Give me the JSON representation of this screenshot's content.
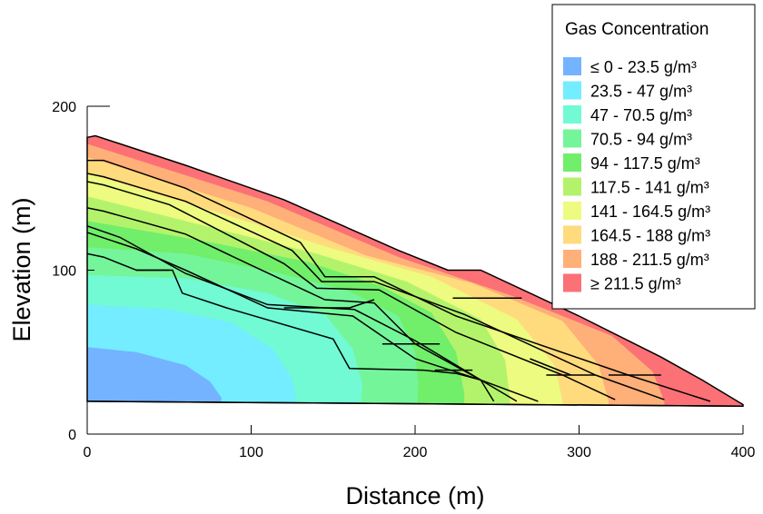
{
  "chart_data": {
    "type": "contour",
    "title": "",
    "xlabel": "Distance (m)",
    "ylabel": "Elevation (m)",
    "xlim": [
      0,
      400
    ],
    "ylim": [
      0,
      200
    ],
    "xticks": [
      0,
      100,
      200,
      300,
      400
    ],
    "yticks": [
      0,
      100,
      200
    ],
    "legend": {
      "title": "Gas Concentration",
      "placement": "top-right",
      "entries": [
        {
          "label": "≤ 0 - 23.5 g/m³",
          "color": "#74B3FF"
        },
        {
          "label": "23.5 - 47 g/m³",
          "color": "#73EDFF"
        },
        {
          "label": "47 - 70.5 g/m³",
          "color": "#71FAD4"
        },
        {
          "label": "70.5 - 94 g/m³",
          "color": "#74F59A"
        },
        {
          "label": "94 - 117.5 g/m³",
          "color": "#71EE6A"
        },
        {
          "label": "117.5 - 141 g/m³",
          "color": "#B3F36C"
        },
        {
          "label": "141 - 164.5 g/m³",
          "color": "#EDFB80"
        },
        {
          "label": "164.5 - 188 g/m³",
          "color": "#FFDB7E"
        },
        {
          "label": "188 - 211.5 g/m³",
          "color": "#FFAF78"
        },
        {
          "label": "≥ 211.5 g/m³",
          "color": "#FB7176"
        }
      ]
    },
    "domain_outline": [
      [
        0,
        181
      ],
      [
        5,
        182
      ],
      [
        60,
        164
      ],
      [
        120,
        143
      ],
      [
        190,
        112
      ],
      [
        220,
        100
      ],
      [
        240,
        100
      ],
      [
        300,
        72
      ],
      [
        350,
        47
      ],
      [
        375,
        33
      ],
      [
        400,
        18
      ],
      [
        400,
        17
      ],
      [
        0,
        20
      ]
    ],
    "foundation_line": [
      [
        0,
        20
      ],
      [
        400,
        17
      ]
    ],
    "contour_bands": [
      {
        "level": 0,
        "boundary": [
          [
            0,
            53
          ],
          [
            30,
            50
          ],
          [
            60,
            42
          ],
          [
            75,
            32
          ],
          [
            82,
            22
          ],
          [
            80,
            11
          ],
          [
            78,
            0
          ]
        ]
      },
      {
        "level": 1,
        "boundary": [
          [
            0,
            79
          ],
          [
            50,
            76
          ],
          [
            88,
            68
          ],
          [
            113,
            52
          ],
          [
            125,
            34
          ],
          [
            128,
            18
          ],
          [
            125,
            0
          ]
        ]
      },
      {
        "level": 2,
        "boundary": [
          [
            0,
            97
          ],
          [
            60,
            95
          ],
          [
            110,
            86
          ],
          [
            145,
            73
          ],
          [
            162,
            52
          ],
          [
            168,
            30
          ],
          [
            165,
            0
          ]
        ]
      },
      {
        "level": 3,
        "boundary": [
          [
            0,
            114
          ],
          [
            60,
            110
          ],
          [
            118,
            98
          ],
          [
            160,
            87
          ],
          [
            190,
            72
          ],
          [
            200,
            50
          ],
          [
            202,
            30
          ],
          [
            200,
            0
          ]
        ]
      },
      {
        "level": 4,
        "boundary": [
          [
            0,
            130
          ],
          [
            70,
            118
          ],
          [
            135,
            105
          ],
          [
            180,
            90
          ],
          [
            210,
            74
          ],
          [
            225,
            50
          ],
          [
            230,
            25
          ],
          [
            230,
            0
          ]
        ]
      },
      {
        "level": 5,
        "boundary": [
          [
            0,
            145
          ],
          [
            80,
            125
          ],
          [
            140,
            110
          ],
          [
            195,
            93
          ],
          [
            240,
            70
          ],
          [
            255,
            45
          ],
          [
            258,
            20
          ],
          [
            258,
            0
          ]
        ]
      },
      {
        "level": 6,
        "boundary": [
          [
            0,
            159
          ],
          [
            90,
            132
          ],
          [
            150,
            113
          ],
          [
            210,
            96
          ],
          [
            262,
            70
          ],
          [
            285,
            42
          ],
          [
            290,
            20
          ],
          [
            290,
            0
          ]
        ]
      },
      {
        "level": 7,
        "boundary": [
          [
            0,
            169
          ],
          [
            100,
            138
          ],
          [
            170,
            109
          ],
          [
            235,
            92
          ],
          [
            290,
            69
          ],
          [
            312,
            42
          ],
          [
            318,
            20
          ],
          [
            318,
            0
          ]
        ]
      },
      {
        "level": 8,
        "boundary": [
          [
            0,
            177
          ],
          [
            110,
            142
          ],
          [
            190,
            108
          ],
          [
            260,
            84
          ],
          [
            320,
            60
          ],
          [
            345,
            38
          ],
          [
            352,
            20
          ],
          [
            352,
            0
          ]
        ]
      }
    ],
    "layer_lines": [
      [
        [
          0,
          167
        ],
        [
          10,
          167
        ],
        [
          60,
          150
        ],
        [
          130,
          117
        ],
        [
          145,
          96
        ],
        [
          175,
          96
        ],
        [
          225,
          72
        ],
        [
          330,
          36
        ],
        [
          380,
          20
        ]
      ],
      [
        [
          0,
          159
        ],
        [
          10,
          157
        ],
        [
          60,
          142
        ],
        [
          125,
          112
        ],
        [
          143,
          93
        ],
        [
          175,
          93
        ],
        [
          230,
          73
        ],
        [
          310,
          36
        ],
        [
          352,
          21
        ]
      ],
      [
        [
          0,
          154
        ],
        [
          10,
          152
        ],
        [
          50,
          140
        ],
        [
          120,
          104
        ],
        [
          140,
          89
        ],
        [
          178,
          88
        ],
        [
          225,
          62
        ],
        [
          290,
          36
        ],
        [
          322,
          21
        ]
      ],
      [
        [
          0,
          138
        ],
        [
          10,
          136
        ],
        [
          60,
          122
        ],
        [
          100,
          103
        ],
        [
          145,
          82
        ],
        [
          175,
          80
        ],
        [
          200,
          55
        ],
        [
          240,
          33
        ],
        [
          248,
          20
        ]
      ],
      [
        [
          0,
          127
        ],
        [
          20,
          120
        ],
        [
          60,
          98
        ],
        [
          110,
          79
        ],
        [
          163,
          76
        ],
        [
          200,
          57
        ],
        [
          240,
          33
        ],
        [
          275,
          20
        ]
      ],
      [
        [
          0,
          123
        ],
        [
          30,
          113
        ],
        [
          60,
          100
        ],
        [
          110,
          77
        ],
        [
          162,
          72
        ],
        [
          200,
          46
        ],
        [
          240,
          33
        ],
        [
          262,
          20
        ]
      ],
      [
        [
          0,
          110
        ],
        [
          10,
          108
        ],
        [
          30,
          100
        ],
        [
          52,
          100
        ],
        [
          58,
          86
        ],
        [
          85,
          77
        ],
        [
          150,
          58
        ],
        [
          160,
          40
        ],
        [
          205,
          39
        ],
        [
          225,
          37
        ],
        [
          240,
          33
        ]
      ],
      [
        [
          30,
          100
        ],
        [
          45,
          100
        ],
        [
          50,
          100
        ]
      ],
      [
        [
          120,
          77
        ],
        [
          160,
          77
        ],
        [
          175,
          82
        ]
      ],
      [
        [
          180,
          55
        ],
        [
          215,
          55
        ]
      ],
      [
        [
          212,
          39
        ],
        [
          235,
          39
        ]
      ],
      [
        [
          223,
          83
        ],
        [
          265,
          83
        ]
      ],
      [
        [
          280,
          36
        ],
        [
          310,
          36
        ]
      ],
      [
        [
          318,
          36
        ],
        [
          350,
          36
        ]
      ],
      [
        [
          270,
          46
        ],
        [
          295,
          36
        ]
      ]
    ]
  }
}
